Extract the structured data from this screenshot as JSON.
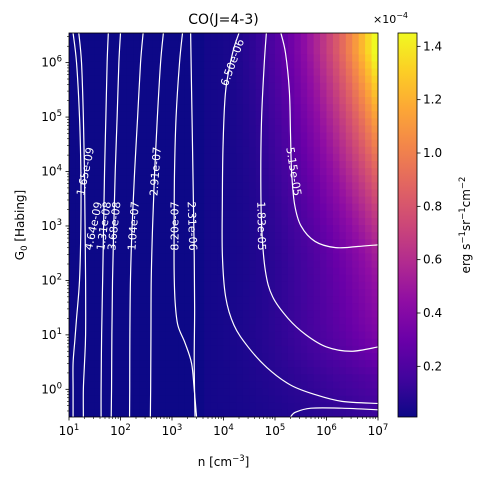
{
  "chart_data": {
    "type": "heatmap",
    "title": "CO(J=4-3)",
    "xlabel": "n [cm$^{-3}$]",
    "xlabel_text": "n [cm",
    "xlabel_sup": "−3",
    "xlabel_end": "]",
    "ylabel_text": "G",
    "ylabel_sub": "0",
    "ylabel_end": " [Habing]",
    "x_scale": "log",
    "y_scale": "log",
    "xlim": [
      10,
      10000000
    ],
    "ylim": [
      0.31,
      3500000
    ],
    "x_ticks": [
      {
        "value": 10,
        "base": "10",
        "exp": "1"
      },
      {
        "value": 100,
        "base": "10",
        "exp": "2"
      },
      {
        "value": 1000,
        "base": "10",
        "exp": "3"
      },
      {
        "value": 10000,
        "base": "10",
        "exp": "4"
      },
      {
        "value": 100000,
        "base": "10",
        "exp": "5"
      },
      {
        "value": 1000000,
        "base": "10",
        "exp": "6"
      },
      {
        "value": 10000000,
        "base": "10",
        "exp": "7"
      }
    ],
    "y_ticks": [
      {
        "value": 1,
        "base": "10",
        "exp": "0"
      },
      {
        "value": 10,
        "base": "10",
        "exp": "1"
      },
      {
        "value": 100,
        "base": "10",
        "exp": "2"
      },
      {
        "value": 1000,
        "base": "10",
        "exp": "3"
      },
      {
        "value": 10000,
        "base": "10",
        "exp": "4"
      },
      {
        "value": 100000,
        "base": "10",
        "exp": "5"
      },
      {
        "value": 1000000,
        "base": "10",
        "exp": "6"
      }
    ],
    "colormap": "plasma",
    "colorbar": {
      "label": "erg s$^{-1}$sr$^{-1}$cm$^{-2}$",
      "label_text": "erg s",
      "label_sup1": "−1",
      "label_mid": "sr",
      "label_sup2": "−1",
      "label_mid2": "cm",
      "label_sup3": "−2",
      "range": [
        1e-06,
        0.000145
      ],
      "ticks": [
        {
          "value": 2e-05,
          "label": "0.2"
        },
        {
          "value": 4e-05,
          "label": "0.4"
        },
        {
          "value": 6e-05,
          "label": "0.6"
        },
        {
          "value": 8e-05,
          "label": "0.8"
        },
        {
          "value": 0.0001,
          "label": "1.0"
        },
        {
          "value": 0.00012,
          "label": "1.2"
        },
        {
          "value": 0.00014,
          "label": "1.4"
        }
      ],
      "offset_text": "×10",
      "offset_exp": "−4"
    },
    "contours": [
      {
        "label": "1.65e-09",
        "level": 1.65e-09,
        "points": [
          [
            19,
            0.31
          ],
          [
            19,
            1
          ],
          [
            20,
            3
          ],
          [
            21,
            10
          ],
          [
            21,
            100
          ],
          [
            20.5,
            1000
          ],
          [
            20,
            10000
          ],
          [
            19,
            100000
          ],
          [
            17.5,
            1000000
          ],
          [
            15.5,
            3500000
          ]
        ]
      },
      {
        "label": "4.64e-09",
        "level": 4.64e-09,
        "points": [
          [
            12,
            0.31
          ],
          [
            12,
            1
          ],
          [
            12,
            3
          ],
          [
            13,
            8
          ],
          [
            14,
            20
          ],
          [
            16,
            100
          ],
          [
            17,
            1000
          ],
          [
            17,
            10000
          ],
          [
            16,
            100000
          ],
          [
            14,
            1000000
          ],
          [
            12,
            3500000
          ]
        ]
      },
      {
        "label": "1.31e-08",
        "level": 1.31e-08,
        "points": [
          [
            42,
            0.31
          ],
          [
            42,
            1
          ],
          [
            43,
            10
          ],
          [
            45,
            100
          ],
          [
            47,
            1000
          ],
          [
            49,
            10000
          ],
          [
            52,
            100000
          ],
          [
            55,
            1000000
          ],
          [
            58,
            3500000
          ]
        ]
      },
      {
        "label": "3.68e-08",
        "level": 3.68e-08,
        "points": [
          [
            66,
            0.31
          ],
          [
            67,
            1
          ],
          [
            68,
            10
          ],
          [
            70,
            100
          ],
          [
            74,
            1000
          ],
          [
            79,
            10000
          ],
          [
            86,
            100000
          ],
          [
            93,
            1000000
          ],
          [
            100,
            3500000
          ]
        ]
      },
      {
        "label": "1.04e-07",
        "level": 1.04e-07,
        "points": [
          [
            150,
            0.31
          ],
          [
            151,
            1
          ],
          [
            152,
            10
          ],
          [
            156,
            100
          ],
          [
            168,
            1000
          ],
          [
            188,
            10000
          ],
          [
            215,
            100000
          ],
          [
            245,
            1000000
          ],
          [
            275,
            3500000
          ]
        ]
      },
      {
        "label": "2.91e-07",
        "level": 2.91e-07,
        "points": [
          [
            380,
            0.31
          ],
          [
            385,
            1
          ],
          [
            390,
            10
          ],
          [
            395,
            100
          ],
          [
            420,
            1000
          ],
          [
            460,
            10000
          ],
          [
            520,
            100000
          ],
          [
            600,
            1000000
          ],
          [
            680,
            3500000
          ]
        ]
      },
      {
        "label": "8.20e-07",
        "level": 8.2e-07,
        "points": [
          [
            3000,
            0.31
          ],
          [
            2700,
            1
          ],
          [
            2400,
            3
          ],
          [
            1800,
            7
          ],
          [
            1300,
            15
          ],
          [
            1150,
            40
          ],
          [
            1100,
            150
          ],
          [
            1100,
            1000
          ],
          [
            1120,
            10000
          ],
          [
            1200,
            100000
          ],
          [
            1400,
            1000000
          ],
          [
            1600,
            3500000
          ]
        ]
      },
      {
        "label": "2.31e-06",
        "level": 2.31e-06,
        "points": [
          [
            2800,
            0.31
          ],
          [
            2700,
            3
          ],
          [
            2750,
            30
          ],
          [
            2700,
            300
          ],
          [
            2600,
            3000
          ],
          [
            2500,
            30000
          ],
          [
            2400,
            300000
          ],
          [
            2300,
            3500000
          ]
        ]
      },
      {
        "label": "6.50e-06",
        "level": 6.5e-06,
        "points": [
          [
            10000000,
            0.55
          ],
          [
            2000000,
            0.6
          ],
          [
            600000,
            0.8
          ],
          [
            200000,
            1.2
          ],
          [
            70000,
            2.5
          ],
          [
            30000,
            6
          ],
          [
            16000,
            15
          ],
          [
            11000,
            50
          ],
          [
            9500,
            300
          ],
          [
            9500,
            3000
          ],
          [
            9800,
            30000
          ],
          [
            11000,
            300000
          ],
          [
            15000,
            1500000
          ],
          [
            20000,
            3500000
          ]
        ]
      },
      {
        "label": "1.83e-05",
        "level": 1.83e-05,
        "points": [
          [
            10000000,
            6
          ],
          [
            3000000,
            5
          ],
          [
            1000000,
            6
          ],
          [
            400000,
            10
          ],
          [
            180000,
            20
          ],
          [
            90000,
            50
          ],
          [
            65000,
            150
          ],
          [
            55000,
            1000
          ],
          [
            53000,
            10000
          ],
          [
            55000,
            100000
          ],
          [
            62000,
            1000000
          ],
          [
            68000,
            3500000
          ]
        ]
      },
      {
        "label": "5.15e-05",
        "level": 5.15e-05,
        "points": [
          [
            10000000,
            450
          ],
          [
            4000000,
            420
          ],
          [
            1500000,
            400
          ],
          [
            600000,
            520
          ],
          [
            320000,
            1000
          ],
          [
            240000,
            2500
          ],
          [
            210000,
            10000
          ],
          [
            200000,
            50000
          ],
          [
            190000,
            300000
          ],
          [
            160000,
            1500000
          ],
          [
            130000,
            3500000
          ]
        ]
      },
      {
        "label": "",
        "level": 0.000145,
        "points": [
          [
            200000,
            0.31
          ],
          [
            250000,
            0.38
          ],
          [
            500000,
            0.45
          ],
          [
            2000000,
            0.45
          ],
          [
            10000000,
            0.42
          ]
        ]
      }
    ],
    "contour_label_positions": [
      {
        "text": "1.65e-09",
        "x": 21,
        "y": 10000,
        "angle": -78
      },
      {
        "text": "4.64e-09",
        "x": 30,
        "y": 1000,
        "angle": -78
      },
      {
        "text": "1.31e-08",
        "x": 48,
        "y": 1000,
        "angle": -82
      },
      {
        "text": "3.68e-08",
        "x": 76,
        "y": 1000,
        "angle": -84
      },
      {
        "text": "1.04e-07",
        "x": 180,
        "y": 1000,
        "angle": -86
      },
      {
        "text": "2.91e-07",
        "x": 480,
        "y": 10000,
        "angle": -86
      },
      {
        "text": "8.20e-07",
        "x": 1150,
        "y": 1000,
        "angle": -90
      },
      {
        "text": "2.31e-06",
        "x": 2450,
        "y": 1000,
        "angle": 88
      },
      {
        "text": "6.50e-06",
        "x": 15000,
        "y": 1000000,
        "angle": -70
      },
      {
        "text": "1.83e-05",
        "x": 54000,
        "y": 1000,
        "angle": 89
      },
      {
        "text": "5.15e-05",
        "x": 230000,
        "y": 10000,
        "angle": 81
      }
    ]
  }
}
